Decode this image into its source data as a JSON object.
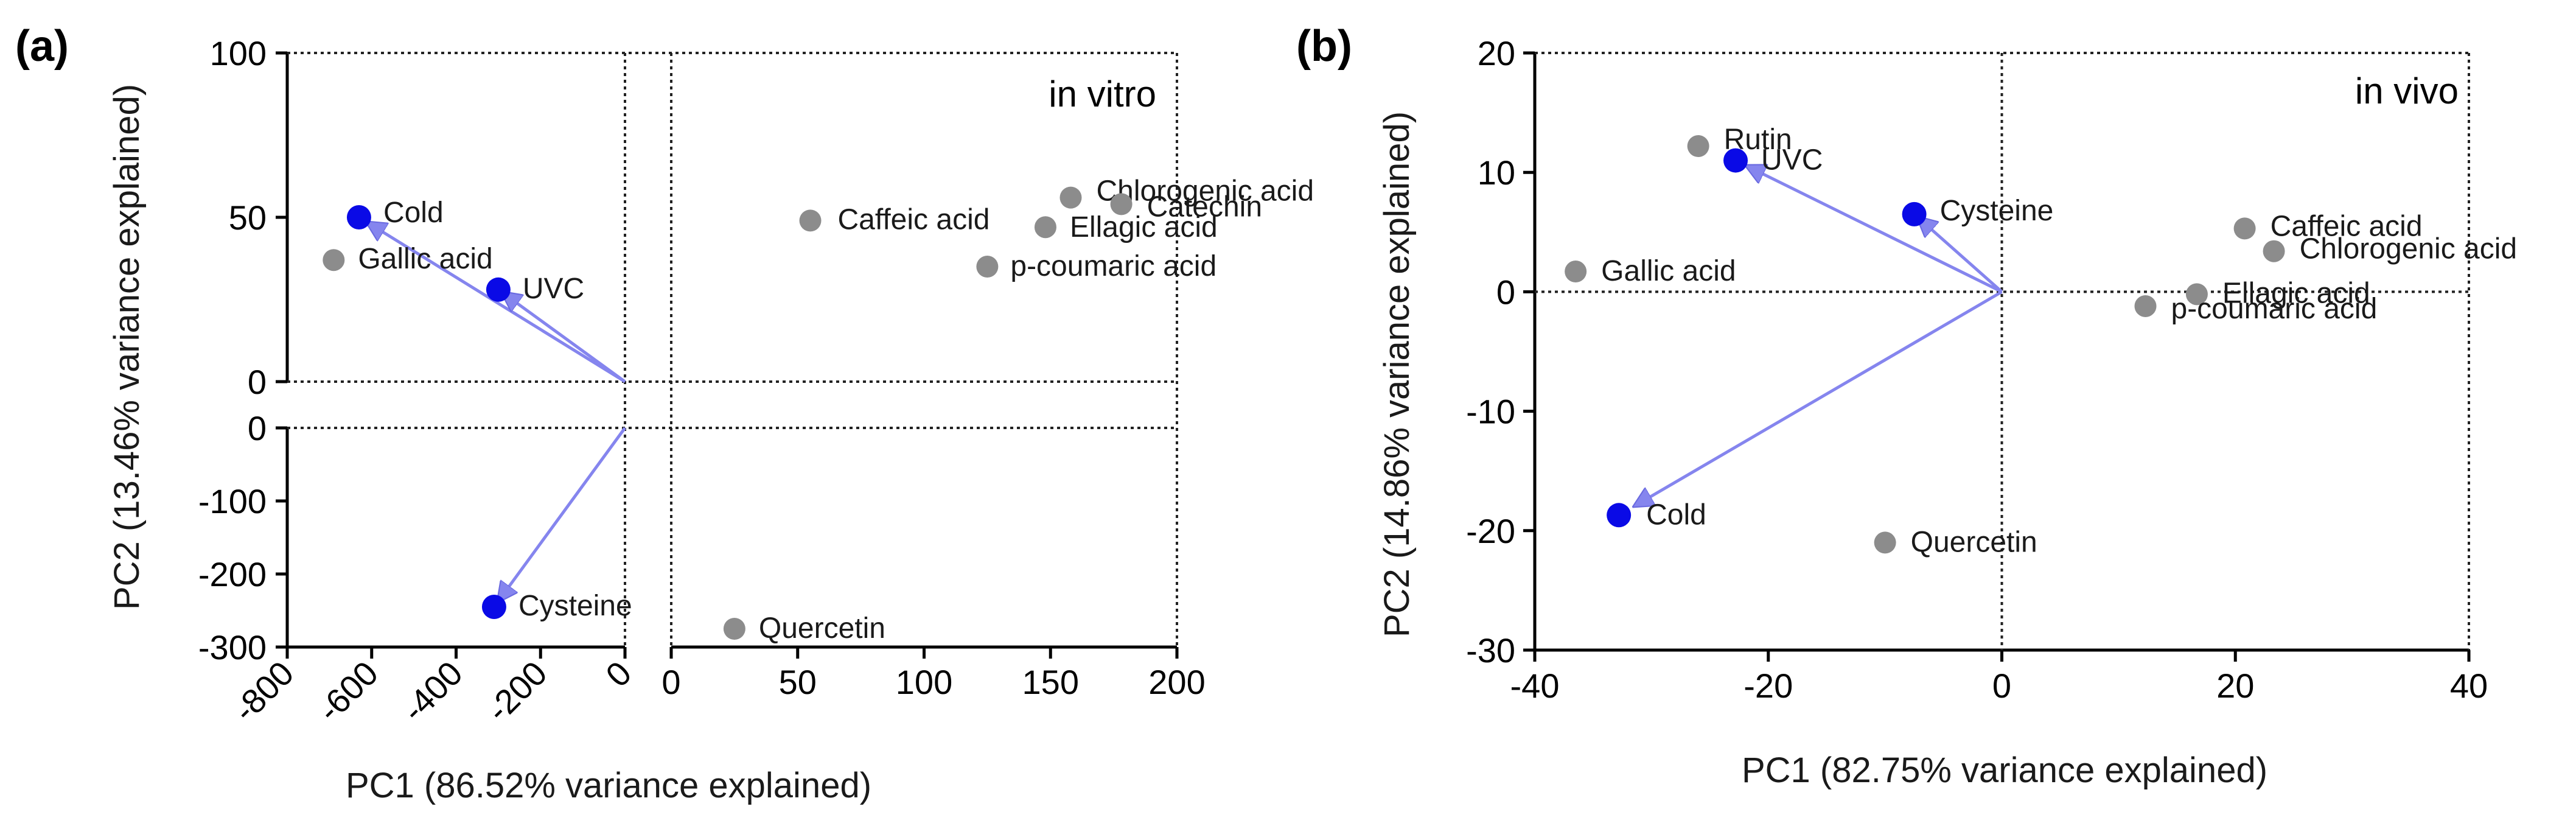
{
  "chart_data": [
    {
      "type": "scatter",
      "panel_label": "(a)",
      "corner_text": "in vitro",
      "xlabel": "PC1 (86.52% variance explained)",
      "ylabel": "PC2 (13.46% variance explained)",
      "x_segments": [
        {
          "range": [
            -800,
            0
          ],
          "ticks": [
            "-800",
            "-600",
            "-400",
            "-200",
            "0"
          ]
        },
        {
          "range": [
            0,
            200
          ],
          "ticks": [
            "0",
            "50",
            "100",
            "150",
            "200"
          ]
        }
      ],
      "y_segments": [
        {
          "range": [
            -300,
            0
          ],
          "ticks": [
            "-300",
            "-200",
            "-100",
            "0"
          ]
        },
        {
          "range": [
            0,
            100
          ],
          "ticks": [
            "0",
            "50",
            "100"
          ]
        }
      ],
      "points": [
        {
          "name": "Cold",
          "x": -630,
          "y": 50,
          "kind": "variable"
        },
        {
          "name": "Gallic acid",
          "x": -690,
          "y": 37,
          "kind": "compound"
        },
        {
          "name": "UVC",
          "x": -300,
          "y": 28,
          "kind": "variable"
        },
        {
          "name": "Cysteine",
          "x": -310,
          "y": -245,
          "kind": "variable"
        },
        {
          "name": "Caffeic acid",
          "x": 55,
          "y": 49,
          "kind": "compound"
        },
        {
          "name": "Chlorogenic acid",
          "x": 158,
          "y": 56,
          "kind": "compound"
        },
        {
          "name": "Catechin",
          "x": 178,
          "y": 54,
          "kind": "compound"
        },
        {
          "name": "Ellagic acid",
          "x": 148,
          "y": 47,
          "kind": "compound"
        },
        {
          "name": "p-coumaric acid",
          "x": 125,
          "y": 35,
          "kind": "compound"
        },
        {
          "name": "Quercetin",
          "x": 25,
          "y": -275,
          "kind": "compound"
        }
      ],
      "vectors": [
        "Cold",
        "UVC",
        "Cysteine"
      ]
    },
    {
      "type": "scatter",
      "panel_label": "(b)",
      "corner_text": "in vivo",
      "xlabel": "PC1 (82.75% variance explained)",
      "ylabel": "PC2 (14.86% variance explained)",
      "xlim": [
        -40,
        40
      ],
      "ylim": [
        -30,
        20
      ],
      "x_ticks": [
        "-40",
        "-20",
        "0",
        "20",
        "40"
      ],
      "y_ticks": [
        "-30",
        "-20",
        "-10",
        "0",
        "10",
        "20"
      ],
      "points": [
        {
          "name": "Rutin",
          "x": -26,
          "y": 12.2,
          "kind": "compound"
        },
        {
          "name": "UVC",
          "x": -22.8,
          "y": 11,
          "kind": "variable"
        },
        {
          "name": "Cysteine",
          "x": -7.5,
          "y": 6.5,
          "kind": "variable"
        },
        {
          "name": "Gallic acid",
          "x": -36.5,
          "y": 1.7,
          "kind": "compound"
        },
        {
          "name": "Caffeic acid",
          "x": 20.8,
          "y": 5.3,
          "kind": "compound"
        },
        {
          "name": "Chlorogenic acid",
          "x": 23.3,
          "y": 3.4,
          "kind": "compound"
        },
        {
          "name": "Ellagic acid",
          "x": 16.7,
          "y": -0.2,
          "kind": "compound"
        },
        {
          "name": "p-coumaric acid",
          "x": 12.3,
          "y": -1.2,
          "kind": "compound"
        },
        {
          "name": "Cold",
          "x": -32.8,
          "y": -18.7,
          "kind": "variable"
        },
        {
          "name": "Quercetin",
          "x": -10,
          "y": -21,
          "kind": "compound"
        }
      ],
      "vectors": [
        "UVC",
        "Cysteine",
        "Cold"
      ]
    }
  ],
  "colors": {
    "variable": "#0a0ae6",
    "compound": "#8c8c8c",
    "arrow": "#8585ee"
  }
}
